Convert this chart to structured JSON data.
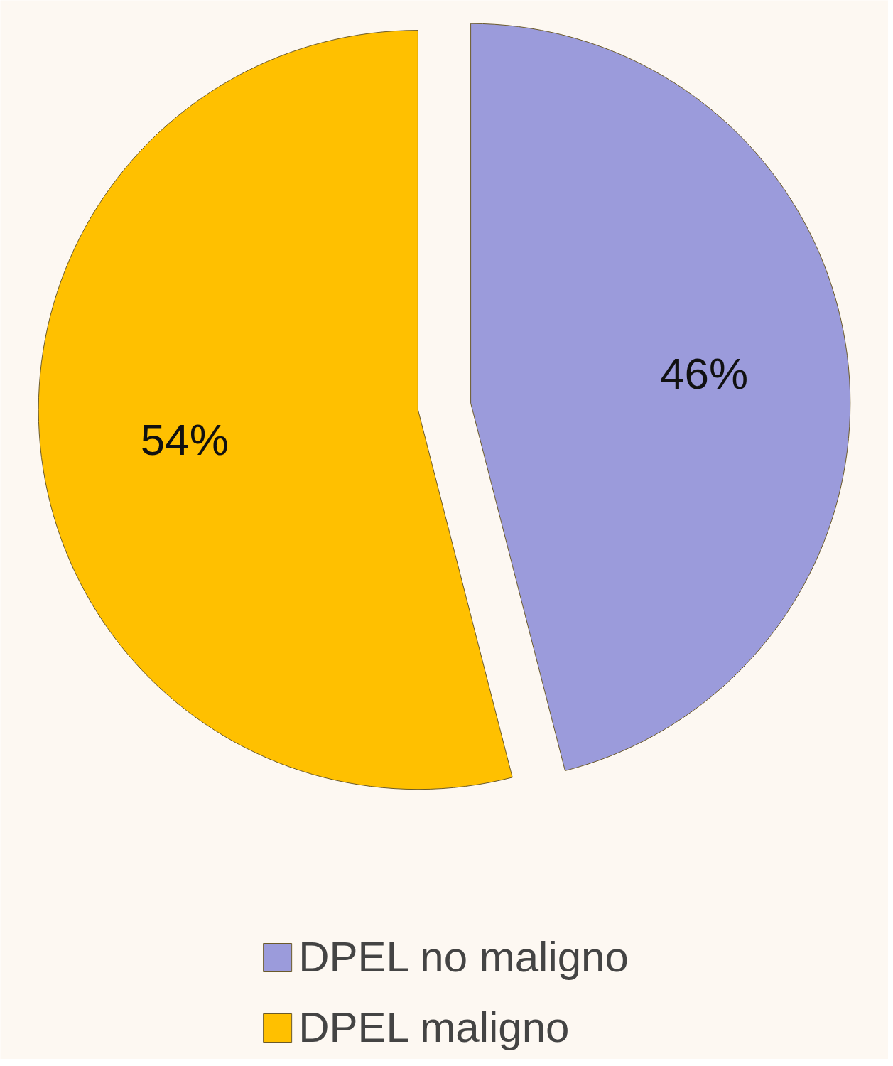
{
  "chart_data": {
    "type": "pie",
    "categories": [
      "DPEL no maligno",
      "DPEL maligno"
    ],
    "values": [
      46,
      54
    ],
    "colors": [
      "#9b9bdb",
      "#ffc000"
    ],
    "data_labels": true,
    "value_labels": [
      "46%",
      "54%"
    ],
    "legend": "bottom"
  }
}
